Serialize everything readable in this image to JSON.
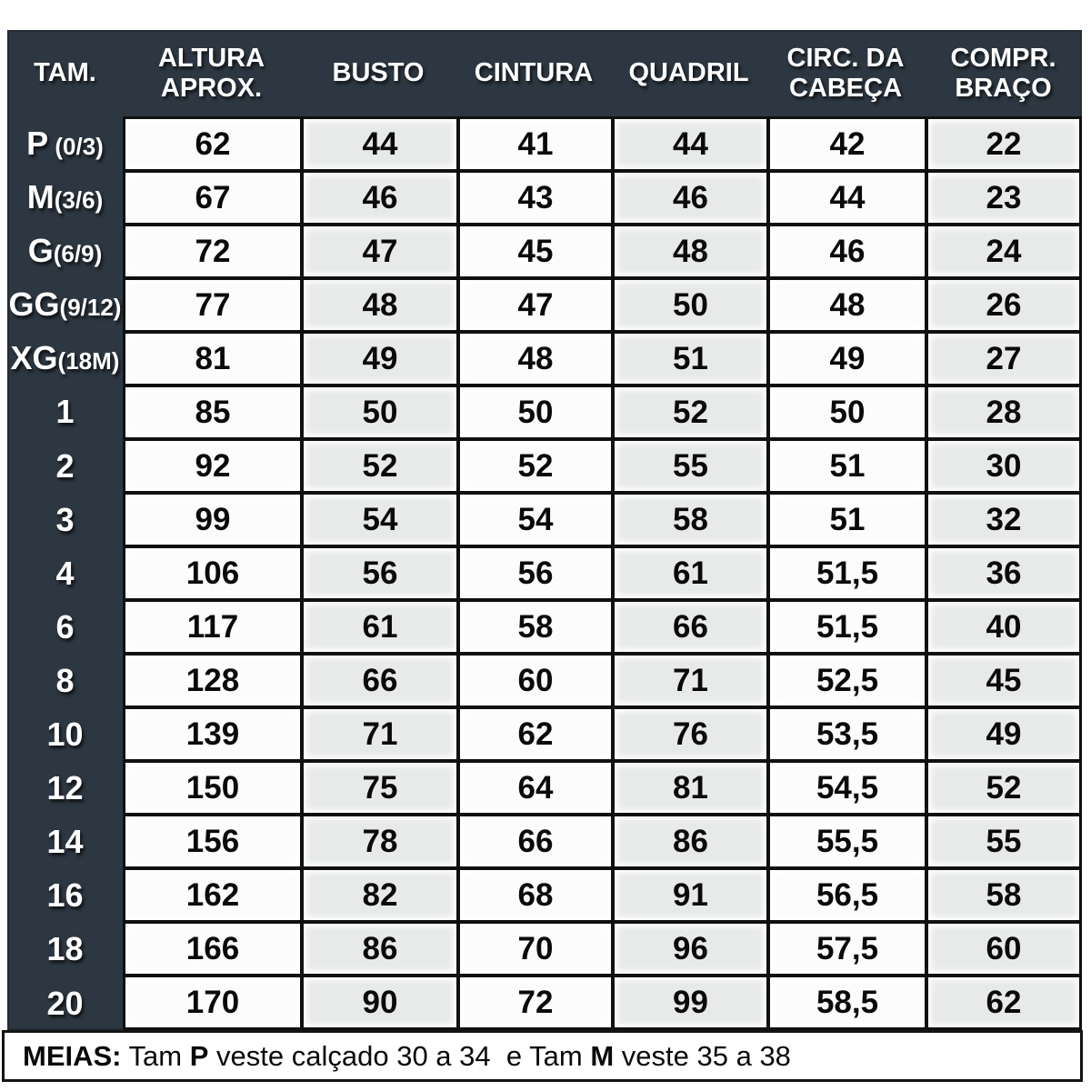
{
  "chart_data": {
    "type": "table",
    "title": "Tabela de medidas (size chart)",
    "columns": [
      "TAM.",
      "ALTURA APROX.",
      "BUSTO",
      "CINTURA",
      "QUADRIL",
      "CIRC. DA CABEÇA",
      "COMPR. BRAÇO"
    ],
    "columns_display": [
      "TAM.",
      "ALTURA\nAPROX.",
      "BUSTO",
      "CINTURA",
      "QUADRIL",
      "CIRC. DA\nCABEÇA",
      "COMPR.\nBRAÇO"
    ],
    "columns_ids": [
      "tam",
      "altura-aprox",
      "busto",
      "cintura",
      "quadril",
      "circ-cabeca",
      "compr-braco"
    ],
    "rows": [
      {
        "tam": "P",
        "tam_detail": " (0/3)",
        "values": [
          "62",
          "44",
          "41",
          "44",
          "42",
          "22"
        ]
      },
      {
        "tam": "M",
        "tam_detail": "(3/6)",
        "values": [
          "67",
          "46",
          "43",
          "46",
          "44",
          "23"
        ]
      },
      {
        "tam": "G",
        "tam_detail": "(6/9)",
        "values": [
          "72",
          "47",
          "45",
          "48",
          "46",
          "24"
        ]
      },
      {
        "tam": "GG",
        "tam_detail": "(9/12)",
        "values": [
          "77",
          "48",
          "47",
          "50",
          "48",
          "26"
        ]
      },
      {
        "tam": "XG",
        "tam_detail": "(18M)",
        "values": [
          "81",
          "49",
          "48",
          "51",
          "49",
          "27"
        ]
      },
      {
        "tam": "1",
        "tam_detail": "",
        "values": [
          "85",
          "50",
          "50",
          "52",
          "50",
          "28"
        ]
      },
      {
        "tam": "2",
        "tam_detail": "",
        "values": [
          "92",
          "52",
          "52",
          "55",
          "51",
          "30"
        ]
      },
      {
        "tam": "3",
        "tam_detail": "",
        "values": [
          "99",
          "54",
          "54",
          "58",
          "51",
          "32"
        ]
      },
      {
        "tam": "4",
        "tam_detail": "",
        "values": [
          "106",
          "56",
          "56",
          "61",
          "51,5",
          "36"
        ]
      },
      {
        "tam": "6",
        "tam_detail": "",
        "values": [
          "117",
          "61",
          "58",
          "66",
          "51,5",
          "40"
        ]
      },
      {
        "tam": "8",
        "tam_detail": "",
        "values": [
          "128",
          "66",
          "60",
          "71",
          "52,5",
          "45"
        ]
      },
      {
        "tam": "10",
        "tam_detail": "",
        "values": [
          "139",
          "71",
          "62",
          "76",
          "53,5",
          "49"
        ]
      },
      {
        "tam": "12",
        "tam_detail": "",
        "values": [
          "150",
          "75",
          "64",
          "81",
          "54,5",
          "52"
        ]
      },
      {
        "tam": "14",
        "tam_detail": "",
        "values": [
          "156",
          "78",
          "66",
          "86",
          "55,5",
          "55"
        ]
      },
      {
        "tam": "16",
        "tam_detail": "",
        "values": [
          "162",
          "82",
          "68",
          "91",
          "56,5",
          "58"
        ]
      },
      {
        "tam": "18",
        "tam_detail": "",
        "values": [
          "166",
          "86",
          "70",
          "96",
          "57,5",
          "60"
        ]
      },
      {
        "tam": "20",
        "tam_detail": "",
        "values": [
          "170",
          "90",
          "72",
          "99",
          "58,5",
          "62"
        ]
      }
    ],
    "footnote": "MEIAS: Tam P veste calçado 30 a 34  e Tam M veste 35 a 38"
  },
  "footer": {
    "label": "MEIAS:",
    "t1": " Tam ",
    "p": "P",
    "t2": " veste calçado 30 a 34  e Tam ",
    "m": "M",
    "t3": " veste 35 a 38"
  },
  "colors": {
    "panel_dark": "#2d3741",
    "grid_line": "#101010",
    "cell_white": "#fcfcfc",
    "cell_gray": "#e8eaea",
    "header_text": "#ffffff",
    "data_text": "#0a0a0a"
  }
}
